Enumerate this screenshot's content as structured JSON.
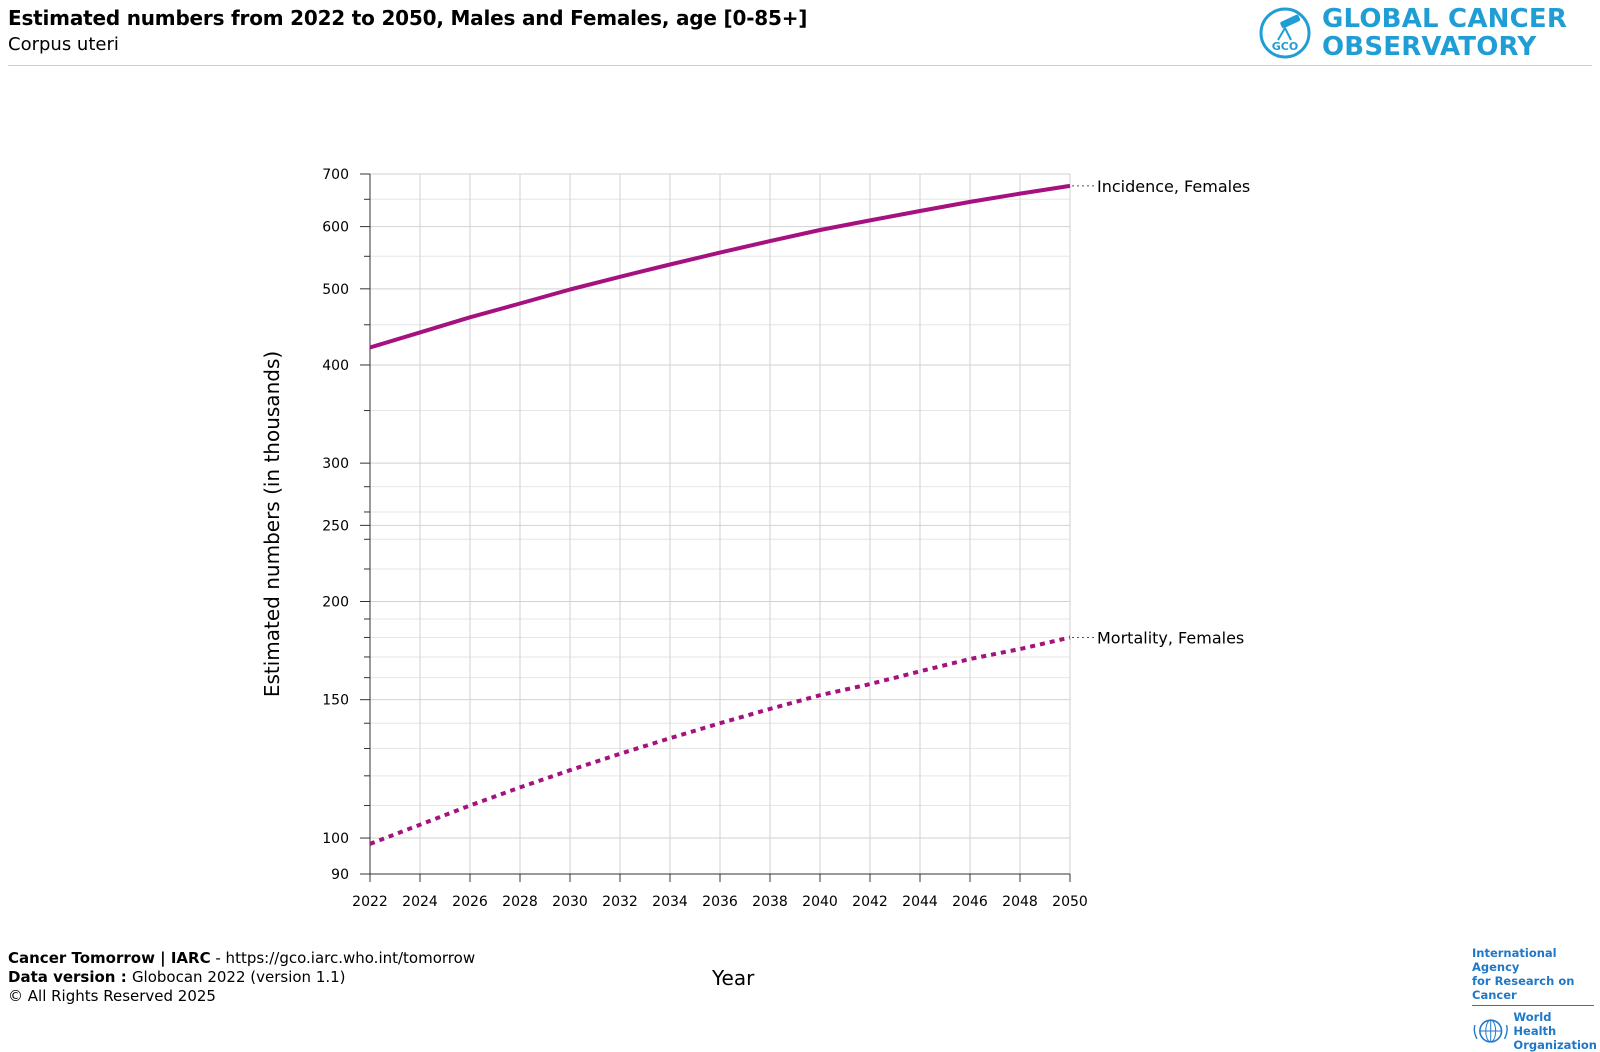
{
  "header": {
    "title": "Estimated numbers from 2022 to 2050, Males and Females, age [0-85+]",
    "subtitle": "Corpus uteri"
  },
  "logo": {
    "badge": "GCO",
    "line1": "GLOBAL CANCER",
    "line2": "OBSERVATORY",
    "color": "#1f9ed6"
  },
  "chart_data": {
    "type": "line",
    "xlabel": "Year",
    "ylabel": "Estimated numbers (in thousands)",
    "y_scale": "log",
    "ylim": [
      90,
      700
    ],
    "xlim": [
      2022,
      2050
    ],
    "x_ticks": [
      2022,
      2024,
      2026,
      2028,
      2030,
      2032,
      2034,
      2036,
      2038,
      2040,
      2042,
      2044,
      2046,
      2048,
      2050
    ],
    "y_ticks": [
      90,
      100,
      150,
      200,
      250,
      300,
      400,
      500,
      600,
      700
    ],
    "grid": true,
    "x": [
      2022,
      2024,
      2026,
      2028,
      2030,
      2032,
      2034,
      2036,
      2038,
      2040,
      2042,
      2044,
      2046,
      2048,
      2050
    ],
    "series": [
      {
        "name": "Incidence, Females",
        "style": "solid",
        "color": "#a5127f",
        "values": [
          421,
          440,
          460,
          479,
          499,
          518,
          537,
          556,
          575,
          594,
          611,
          628,
          645,
          661,
          676
        ]
      },
      {
        "name": "Mortality, Females",
        "style": "dotted",
        "color": "#a5127f",
        "values": [
          98.3,
          104,
          110,
          116,
          122,
          128,
          134,
          140,
          146,
          152,
          157,
          163,
          169,
          174,
          180
        ]
      }
    ]
  },
  "footer": {
    "source_label": "Cancer Tomorrow | IARC",
    "source_url": " - https://gco.iarc.who.int/tomorrow",
    "version_label": "Data version : ",
    "version_value": "Globocan 2022 (version 1.1)",
    "copyright": "© All Rights Reserved 2025"
  },
  "partner_logos": {
    "iarc_line1": "International Agency",
    "iarc_line2": "for Research on Cancer",
    "who_line1": "World Health",
    "who_line2": "Organization",
    "color": "#1f78c8"
  }
}
